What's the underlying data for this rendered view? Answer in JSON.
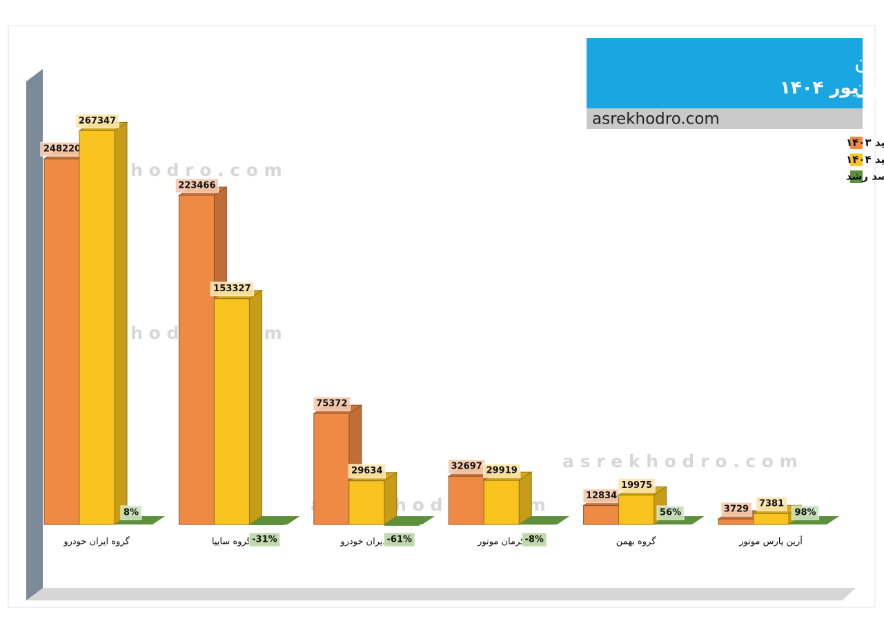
{
  "chart_data": {
    "type": "bar3d",
    "title": "آمار تولید خودروسازان",
    "subtitle": "تا پایان",
    "subtitle_emphasis": "شهریور ۱۴۰۴",
    "source": "asrekhodro.com",
    "watermark": "a s r e k h o d r o . c o m",
    "categories": [
      "گروه ایران خودرو",
      "گروه سایپا",
      "مدیران خودرو",
      "کرمان موتور",
      "گروه بهمن",
      "آرین پارس موتور"
    ],
    "series": [
      {
        "name": "تولید ۱۴۰۳",
        "color": "#ef8a45",
        "values": [
          248220,
          223466,
          75372,
          32697,
          12834,
          3729
        ]
      },
      {
        "name": "تولید ۱۴۰۴",
        "color": "#f9c31f",
        "values": [
          267347,
          153327,
          29634,
          29919,
          19975,
          7381
        ]
      },
      {
        "name": "درصد رشد",
        "color": "#5e8f3c",
        "axis": "y2",
        "values": [
          8,
          -31,
          -61,
          -8,
          56,
          98
        ],
        "value_labels": [
          "8%",
          "-31%",
          "-61%",
          "-8%",
          "56%",
          "98%"
        ]
      }
    ],
    "ylim": [
      0,
      290000
    ],
    "y2lim": [
      0,
      20000
    ],
    "grid": false,
    "legend": "top-right"
  }
}
